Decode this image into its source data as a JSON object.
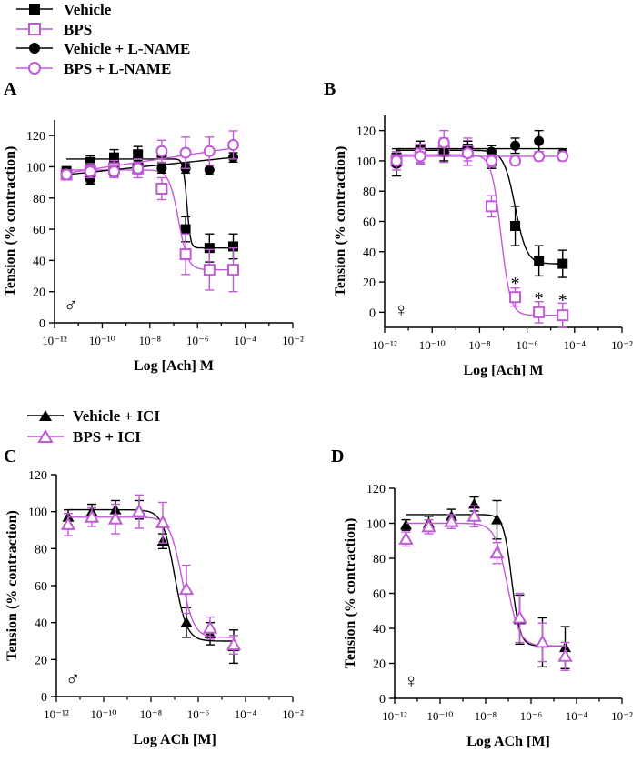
{
  "colors": {
    "black": "#000000",
    "purple": "#c05ad6"
  },
  "legend_top": [
    "Vehicle",
    "BPS",
    "Vehicle + L-NAME",
    "BPS + L-NAME"
  ],
  "legend_bottom": [
    "Vehicle + ICI",
    "BPS + ICI"
  ],
  "chart_data": [
    {
      "panel": "A",
      "type": "scatter",
      "sex_symbol": "♂",
      "ylabel": "Tension (% contraction)",
      "xlabel": "Log [Ach] M",
      "xlim": [
        -12,
        -2
      ],
      "ylim": [
        0,
        130
      ],
      "yticks": [
        0,
        20,
        40,
        60,
        80,
        100,
        120
      ],
      "xticks": [
        -12,
        -10,
        -8,
        -6,
        -4,
        -2
      ],
      "x": [
        -11.5,
        -10.5,
        -9.5,
        -8.5,
        -7.5,
        -6.5,
        -5.5,
        -4.5
      ],
      "series": [
        {
          "name": "Vehicle",
          "marker": "square-filled",
          "color": "#000000",
          "values": [
            97,
            103,
            106,
            108,
            109,
            60,
            48,
            49
          ],
          "errors": [
            3,
            4,
            5,
            5,
            3,
            8,
            9,
            8
          ],
          "fit": {
            "top": 105,
            "bottom": 48,
            "logec50": -6.45,
            "hill": 6
          }
        },
        {
          "name": "BPS",
          "marker": "square-open",
          "color": "#c05ad6",
          "values": [
            95,
            97,
            99,
            99,
            86,
            44,
            34,
            34
          ],
          "errors": [
            3,
            5,
            5,
            6,
            7,
            13,
            13,
            14
          ],
          "fit": {
            "top": 98,
            "bottom": 34,
            "logec50": -6.8,
            "hill": 2.2
          }
        },
        {
          "name": "Vehicle + L-NAME",
          "marker": "circle-filled",
          "color": "#000000",
          "values": [
            97,
            92,
            97,
            101,
            99,
            99,
            98,
            106
          ],
          "errors": [
            3,
            3,
            3,
            3,
            3,
            3,
            3,
            3
          ],
          "fit": {
            "type": "linear",
            "start": 95,
            "end": 106
          }
        },
        {
          "name": "BPS + L-NAME",
          "marker": "circle-open",
          "color": "#c05ad6",
          "values": [
            95,
            97,
            97,
            99,
            110,
            109,
            110,
            114
          ],
          "errors": [
            3,
            4,
            4,
            4,
            7,
            10,
            9,
            9
          ],
          "fit": {
            "type": "linear",
            "start": 96,
            "end": 112
          }
        }
      ],
      "annotations": []
    },
    {
      "panel": "B",
      "type": "scatter",
      "sex_symbol": "♀",
      "ylabel": "Tension (% contraction)",
      "xlabel": "Log [Ach] M",
      "xlim": [
        -12,
        -2
      ],
      "ylim": [
        -10,
        130
      ],
      "yticks": [
        0,
        20,
        40,
        60,
        80,
        100,
        120
      ],
      "xticks": [
        -12,
        -10,
        -8,
        -6,
        -4,
        -2
      ],
      "x": [
        -11.5,
        -10.5,
        -9.5,
        -8.5,
        -7.5,
        -6.5,
        -5.5,
        -4.5
      ],
      "series": [
        {
          "name": "Vehicle",
          "marker": "square-filled",
          "color": "#000000",
          "values": [
            102,
            108,
            108,
            108,
            100,
            57,
            34,
            32
          ],
          "errors": [
            6,
            5,
            5,
            5,
            5,
            13,
            10,
            9
          ],
          "fit": {
            "top": 107,
            "bottom": 32,
            "logec50": -6.5,
            "hill": 1.8
          }
        },
        {
          "name": "BPS",
          "marker": "square-open",
          "color": "#c05ad6",
          "values": [
            100,
            105,
            107,
            106,
            70,
            10,
            0,
            -2
          ],
          "errors": [
            4,
            6,
            8,
            9,
            7,
            6,
            7,
            8
          ],
          "fit": {
            "top": 104,
            "bottom": -2,
            "logec50": -7.1,
            "hill": 2.2
          }
        },
        {
          "name": "Vehicle + L-NAME",
          "marker": "circle-filled",
          "color": "#000000",
          "values": [
            98,
            103,
            106,
            108,
            106,
            110,
            113,
            105
          ],
          "errors": [
            8,
            5,
            6,
            5,
            4,
            5,
            7,
            3
          ],
          "fit": {
            "type": "linear",
            "start": 108,
            "end": 108
          }
        },
        {
          "name": "BPS + L-NAME",
          "marker": "circle-open",
          "color": "#c05ad6",
          "values": [
            100,
            103,
            112,
            105,
            100,
            100,
            103,
            103
          ],
          "errors": [
            6,
            5,
            8,
            5,
            4,
            3,
            3,
            3
          ],
          "fit": {
            "type": "linear",
            "start": 103,
            "end": 103
          }
        }
      ],
      "annotations": [
        {
          "text": "*",
          "x": -6.5,
          "y": 20
        },
        {
          "text": "*",
          "x": -5.5,
          "y": 10
        },
        {
          "text": "*",
          "x": -4.5,
          "y": 9
        }
      ]
    },
    {
      "panel": "C",
      "type": "scatter",
      "sex_symbol": "♂",
      "ylabel": "Tension (% contraction)",
      "xlabel": "Log ACh [M]",
      "xlim": [
        -12,
        -2
      ],
      "ylim": [
        0,
        120
      ],
      "yticks": [
        0,
        20,
        40,
        60,
        80,
        100,
        120
      ],
      "xticks": [
        -12,
        -10,
        -8,
        -6,
        -4,
        -2
      ],
      "x": [
        -11.5,
        -10.5,
        -9.5,
        -8.5,
        -7.5,
        -6.5,
        -5.5,
        -4.5
      ],
      "series": [
        {
          "name": "Vehicle + ICI",
          "marker": "triangle-filled",
          "color": "#000000",
          "values": [
            97,
            100,
            101,
            101,
            84,
            40,
            34,
            27
          ],
          "errors": [
            4,
            4,
            5,
            5,
            4,
            8,
            6,
            9
          ],
          "fit": {
            "top": 101,
            "bottom": 30,
            "logec50": -7.0,
            "hill": 1.7
          }
        },
        {
          "name": "BPS + ICI",
          "marker": "triangle-open",
          "color": "#c05ad6",
          "values": [
            93,
            97,
            96,
            100,
            94,
            58,
            37,
            28
          ],
          "errors": [
            6,
            5,
            8,
            9,
            11,
            13,
            6,
            5
          ],
          "fit": {
            "top": 97,
            "bottom": 32,
            "logec50": -6.7,
            "hill": 1.7
          }
        }
      ],
      "annotations": []
    },
    {
      "panel": "D",
      "type": "scatter",
      "sex_symbol": "♀",
      "ylabel": "Tension (% contraction)",
      "xlabel": "Log ACh [M]",
      "xlim": [
        -12,
        -2
      ],
      "ylim": [
        0,
        120
      ],
      "yticks": [
        0,
        20,
        40,
        60,
        80,
        100,
        120
      ],
      "xticks": [
        -12,
        -10,
        -8,
        -6,
        -4,
        -2
      ],
      "x": [
        -11.5,
        -10.5,
        -9.5,
        -8.5,
        -7.5,
        -6.5,
        -5.5,
        -4.5
      ],
      "series": [
        {
          "name": "Vehicle + ICI",
          "marker": "triangle-filled",
          "color": "#000000",
          "values": [
            99,
            100,
            104,
            111,
            102,
            45,
            32,
            29
          ],
          "errors": [
            3,
            4,
            4,
            4,
            11,
            14,
            14,
            12
          ],
          "fit": {
            "top": 105,
            "bottom": 30,
            "logec50": -6.85,
            "hill": 2.4
          }
        },
        {
          "name": "BPS + ICI",
          "marker": "triangle-open",
          "color": "#c05ad6",
          "values": [
            91,
            98,
            101,
            104,
            83,
            46,
            32,
            24
          ],
          "errors": [
            4,
            4,
            4,
            6,
            6,
            14,
            11,
            8
          ],
          "fit": {
            "top": 100,
            "bottom": 30,
            "logec50": -7.05,
            "hill": 1.6
          }
        }
      ],
      "annotations": []
    }
  ]
}
